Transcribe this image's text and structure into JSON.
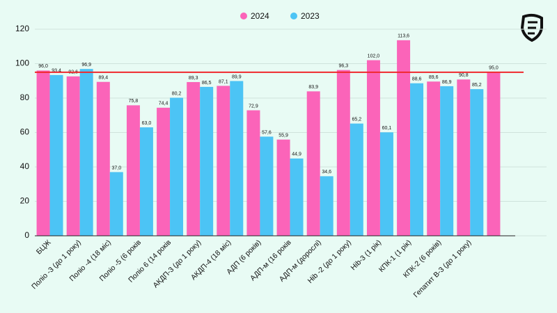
{
  "chart_data": {
    "type": "bar",
    "categories": [
      "БЦЖ",
      "Поліо -3 (до 1 року)",
      "Поліо -4 (18 міс)",
      "Поліо -5 (6 років",
      "Поліо 6 (14 років",
      "АКДП-3 (до 1 року)",
      "АКДП-4 (18 міс)",
      "АДП (6 років)",
      "АДП-м (16 років",
      "АДП-м (дорослі)",
      "Hib -2 (до 1 року)",
      "Hib-3 (1 рік)",
      "КПК-1 (1 рік)",
      "КПК-2 (6 років)",
      "Гепатит В-3 (до 1 року)",
      null
    ],
    "series": [
      {
        "name": "2024",
        "color": "#fb64b9",
        "values": [
          96.0,
          92.6,
          89.4,
          75.8,
          74.4,
          89.3,
          87.1,
          72.9,
          55.9,
          83.9,
          96.3,
          102.0,
          113.6,
          89.6,
          90.8,
          95.0
        ],
        "value_labels": [
          "96,0",
          "92,6",
          "89,4",
          "75,8",
          "74,4",
          "89,3",
          "87,1",
          "72,9",
          "55,9",
          "83,9",
          "96,3",
          "102,0",
          "113,6",
          "89,6",
          "90,8",
          "95,0"
        ]
      },
      {
        "name": "2023",
        "color": "#4cc4f5",
        "values": [
          93.4,
          96.9,
          37.0,
          63.0,
          80.2,
          86.5,
          89.9,
          57.6,
          44.9,
          34.6,
          65.2,
          60.1,
          88.6,
          86.9,
          85.2,
          null
        ],
        "value_labels": [
          "93,4",
          "96,9",
          "37,0",
          "63,0",
          "80,2",
          "86,5",
          "89,9",
          "57,6",
          "44,9",
          "34,6",
          "65,2",
          "60,1",
          "88,6",
          "86,9",
          "85,2",
          null
        ]
      }
    ],
    "reference_line": {
      "value": 95,
      "color": "#f0282d"
    },
    "ylim": [
      0,
      120
    ],
    "yticks": [
      0,
      20,
      40,
      60,
      80,
      100,
      120
    ],
    "grid": true,
    "legend": "top"
  }
}
